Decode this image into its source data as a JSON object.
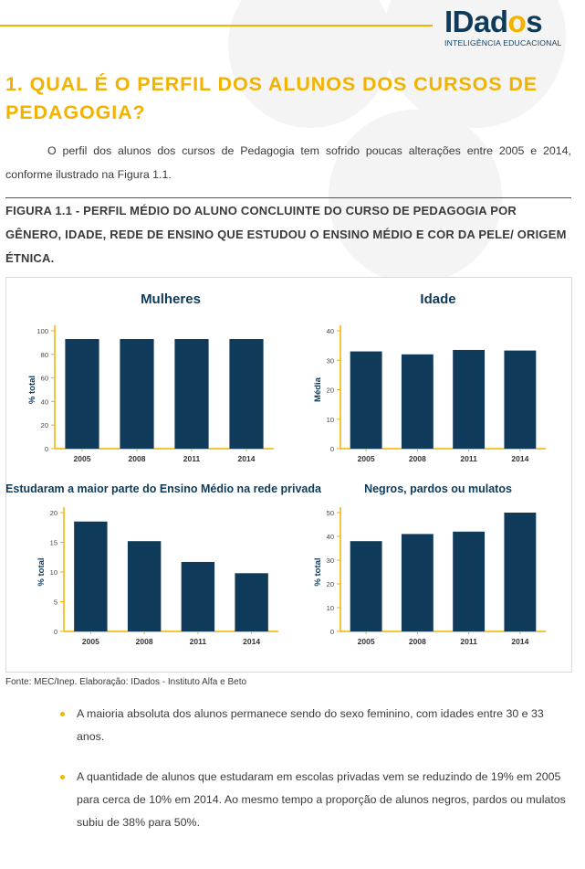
{
  "logo": {
    "brand_main": "IDad",
    "brand_o": "o",
    "brand_end": "s",
    "tagline": "INTELIGÊNCIA EDUCACIONAL"
  },
  "heading": "1. QUAL É O PERFIL DOS ALUNOS DOS CURSOS DE PEDAGOGIA?",
  "intro": "O perfil dos alunos dos cursos de Pedagogia tem sofrido poucas alterações entre 2005 e 2014, conforme ilustrado na Figura 1.1.",
  "figure_title": "FIGURA 1.1 - PERFIL MÉDIO DO ALUNO CONCLUINTE DO CURSO DE PEDAGOGIA POR GÊNERO, IDADE, REDE DE ENSINO QUE ESTUDOU O ENSINO MÉDIO E COR DA PELE/ ORIGEM ÉTNICA.",
  "source": "Fonte: MEC/Inep. Elaboração: IDados - Instituto Alfa e Beto",
  "bullets": [
    "A maioria absoluta dos alunos permanece sendo do sexo feminino, com idades entre 30 e 33 anos.",
    "A quantidade de alunos que estudaram em escolas privadas vem se reduzindo de 19% em 2005 para cerca de 10% em 2014. Ao mesmo tempo a proporção de alunos negros, pardos ou mulatos subiu de 38% para 50%."
  ],
  "colors": {
    "accent": "#f2b200",
    "bar": "#0f3a5a",
    "axis": "#f2b200",
    "text": "#3a3a3a"
  },
  "chart_data": [
    {
      "type": "bar",
      "title": "Mulheres",
      "ylabel": "% total",
      "xlabel": "",
      "categories": [
        "2005",
        "2008",
        "2011",
        "2014"
      ],
      "values": [
        93,
        93,
        93,
        93
      ],
      "ylim": [
        0,
        100
      ],
      "yticks": [
        0,
        20,
        40,
        60,
        80,
        100
      ]
    },
    {
      "type": "bar",
      "title": "Idade",
      "ylabel": "Média",
      "xlabel": "",
      "categories": [
        "2005",
        "2008",
        "2011",
        "2014"
      ],
      "values": [
        33,
        32,
        33.5,
        33.3
      ],
      "ylim": [
        0,
        40
      ],
      "yticks": [
        0,
        10,
        20,
        30,
        40
      ]
    },
    {
      "type": "bar",
      "title": "Estudaram a maior parte do Ensino Médio na rede privada",
      "ylabel": "% total",
      "xlabel": "",
      "categories": [
        "2005",
        "2008",
        "2011",
        "2014"
      ],
      "values": [
        18.5,
        15.2,
        11.7,
        9.8
      ],
      "ylim": [
        0,
        20
      ],
      "yticks": [
        0,
        5,
        10,
        15,
        20
      ]
    },
    {
      "type": "bar",
      "title": "Negros, pardos ou mulatos",
      "ylabel": "% total",
      "xlabel": "",
      "categories": [
        "2005",
        "2008",
        "2011",
        "2014"
      ],
      "values": [
        38,
        41,
        42,
        50
      ],
      "ylim": [
        0,
        50
      ],
      "yticks": [
        0,
        10,
        20,
        30,
        40,
        50
      ]
    }
  ]
}
